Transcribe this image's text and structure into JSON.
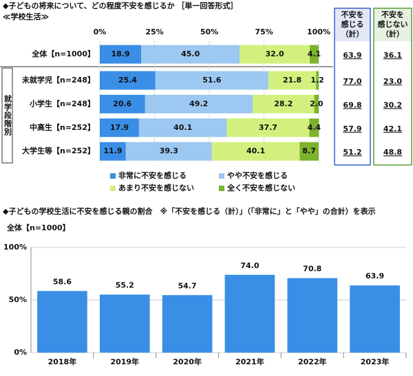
{
  "chart_data": [
    {
      "type": "stacked_bar",
      "title": "◆子どもの将来について、どの程度不安を感じるか ［単一回答形式］",
      "subtitle": "≪学校生活≫",
      "group_label": "就学段階別",
      "categories": [
        "全体【n=1000】",
        "未就学児【n=248】",
        "小学生【n=248】",
        "中高生【n=252】",
        "大学生等【n=252】"
      ],
      "xlim": [
        0,
        100
      ],
      "xticks": [
        {
          "value": 0,
          "label": "0%"
        },
        {
          "value": 25,
          "label": "25%"
        },
        {
          "value": 50,
          "label": "50%"
        },
        {
          "value": 75,
          "label": "75%"
        },
        {
          "value": 100,
          "label": "100%"
        }
      ],
      "grid": true,
      "series": [
        {
          "name": "非常に不安を感じる",
          "color": "#3a8ee6",
          "values": [
            18.9,
            25.4,
            20.6,
            17.9,
            11.9
          ],
          "value_labels": [
            "18.9",
            "25.4",
            "20.6",
            "17.9",
            "11.9"
          ]
        },
        {
          "name": "やや不安を感じる",
          "color": "#9cc8f2",
          "values": [
            45.0,
            51.6,
            49.2,
            40.1,
            39.3
          ],
          "value_labels": [
            "45.0",
            "51.6",
            "49.2",
            "40.1",
            "39.3"
          ]
        },
        {
          "name": "あまり不安を感じない",
          "color": "#d3f07e",
          "values": [
            32.0,
            21.8,
            28.2,
            37.7,
            40.1
          ],
          "value_labels": [
            "32.0",
            "21.8",
            "28.2",
            "37.7",
            "40.1"
          ]
        },
        {
          "name": "全く不安を感じない",
          "color": "#7cb32c",
          "values": [
            4.1,
            1.2,
            2.0,
            4.4,
            8.7
          ],
          "value_labels": [
            "4.1",
            "1.2",
            "2.0",
            "4.4",
            "8.7"
          ]
        }
      ],
      "summary_columns": [
        {
          "header": [
            "不安を",
            "感じる",
            "（計）"
          ],
          "color": "#3a5fcd",
          "values": [
            63.9,
            77.0,
            69.8,
            57.9,
            51.2
          ],
          "value_labels": [
            "63.9",
            "77.0",
            "69.8",
            "57.9",
            "51.2"
          ]
        },
        {
          "header": [
            "不安を",
            "感じない",
            "（計）"
          ],
          "color": "#55a033",
          "values": [
            36.1,
            23.0,
            30.2,
            42.1,
            48.8
          ],
          "value_labels": [
            "36.1",
            "23.0",
            "30.2",
            "42.1",
            "48.8"
          ]
        }
      ]
    },
    {
      "type": "bar",
      "title": "◆子どもの学校生活に不安を感じる親の割合　※「不安を感じる（計）」（「非常に」と「やや」の合計）を表示",
      "subtitle": "全体【n=1000】",
      "categories": [
        "2018年",
        "2019年",
        "2020年",
        "2021年",
        "2022年",
        "2023年"
      ],
      "values": [
        58.6,
        55.2,
        54.7,
        74.0,
        70.8,
        63.9
      ],
      "value_labels": [
        "58.6",
        "55.2",
        "54.7",
        "74.0",
        "70.8",
        "63.9"
      ],
      "color": "#3a8ee6",
      "ylim": [
        0,
        100
      ],
      "yticks": [
        {
          "value": 0,
          "label": "0%"
        },
        {
          "value": 50,
          "label": "50%"
        },
        {
          "value": 100,
          "label": "100%"
        }
      ],
      "grid": true
    }
  ]
}
